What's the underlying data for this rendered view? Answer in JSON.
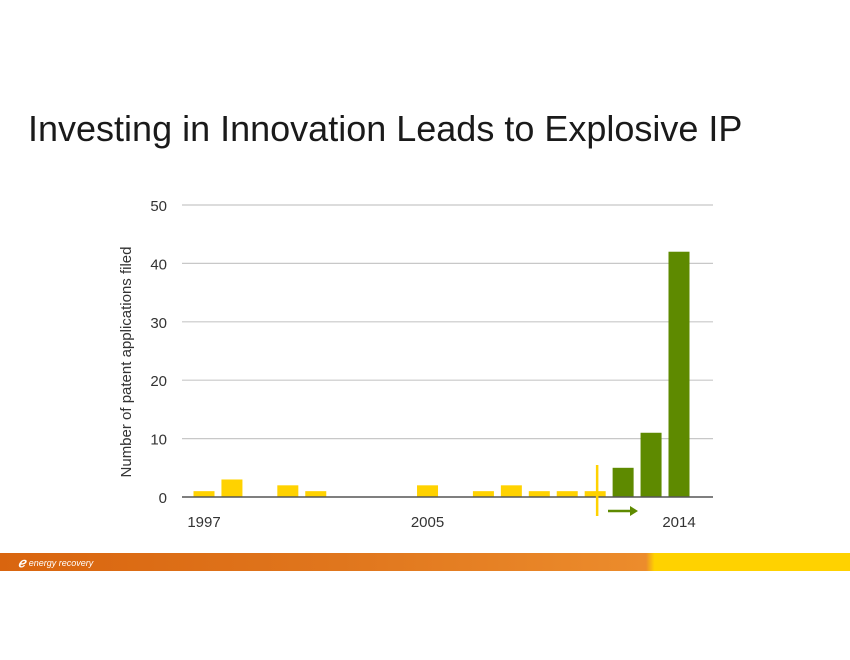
{
  "title": "Investing in Innovation Leads to Explosive IP",
  "chart_data": {
    "type": "bar",
    "title": "Investing in Innovation Leads to Explosive IP",
    "xlabel": "",
    "ylabel": "Number of patent applications filed",
    "ylim": [
      0,
      50
    ],
    "yticks": [
      0,
      10,
      20,
      30,
      40,
      50
    ],
    "xtick_labels": [
      "1997",
      "2005",
      "2014"
    ],
    "categories": [
      "1997",
      "1998",
      "1999",
      "2000",
      "2001",
      "2002",
      "2003",
      "2004",
      "2005",
      "2006",
      "2007",
      "2008",
      "2009",
      "2010",
      "2011",
      "2012",
      "2013",
      "2014"
    ],
    "values": [
      1,
      3,
      0,
      2,
      1,
      0,
      0,
      0,
      2,
      0,
      1,
      2,
      1,
      1,
      1,
      5,
      11,
      42
    ],
    "colors": [
      "#ffd200",
      "#ffd200",
      "#ffd200",
      "#ffd200",
      "#ffd200",
      "#ffd200",
      "#ffd200",
      "#ffd200",
      "#ffd200",
      "#ffd200",
      "#ffd200",
      "#ffd200",
      "#ffd200",
      "#ffd200",
      "#ffd200",
      "#5e8a00",
      "#5e8a00",
      "#5e8a00"
    ],
    "grid": true,
    "annotations": [
      "vertical divider between 2011 and 2012",
      "arrow pointing right toward 2014"
    ]
  },
  "footer": {
    "logo_text": "energy recovery"
  }
}
